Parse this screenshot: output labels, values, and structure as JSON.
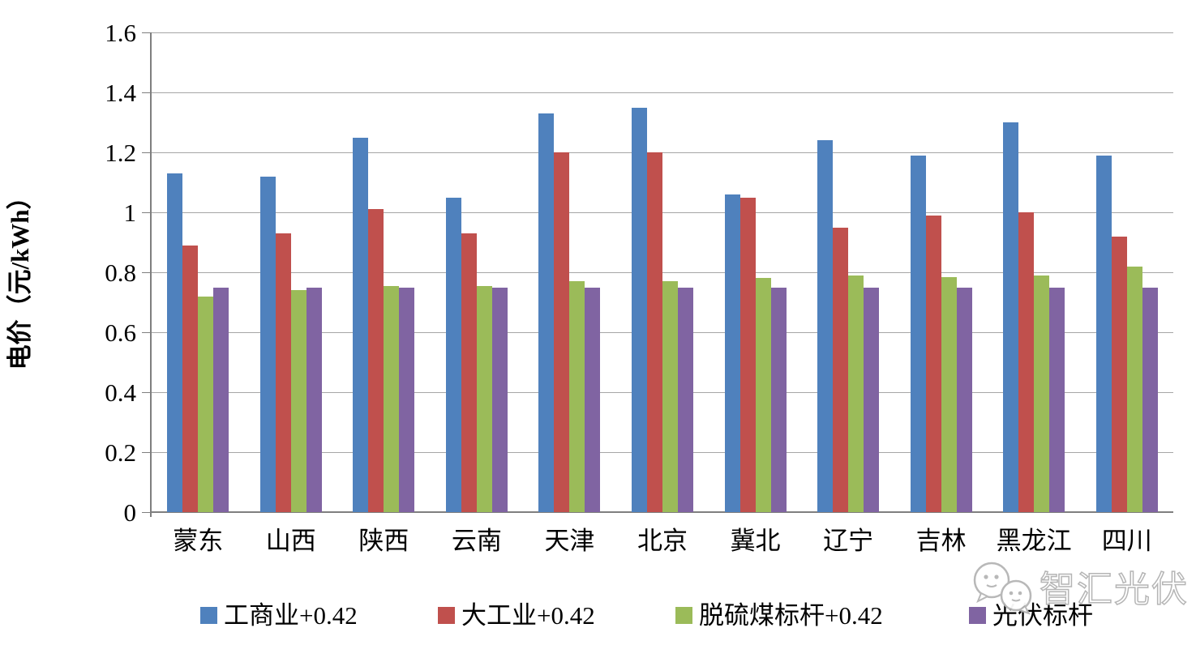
{
  "chart_data": {
    "type": "bar",
    "title": "",
    "xlabel": "",
    "ylabel": "电价（元/kWh）",
    "ylim": [
      0,
      1.6
    ],
    "ytick_step": 0.2,
    "ytick_labels": [
      "0",
      "0.2",
      "0.4",
      "0.6",
      "0.8",
      "1",
      "1.2",
      "1.4",
      "1.6"
    ],
    "grid": true,
    "legend_position": "bottom",
    "categories": [
      "蒙东",
      "山西",
      "陕西",
      "云南",
      "天津",
      "北京",
      "冀北",
      "辽宁",
      "吉林",
      "黑龙江",
      "四川"
    ],
    "series": [
      {
        "name": "工商业+0.42",
        "color": "#4F81BD",
        "values": [
          1.13,
          1.12,
          1.25,
          1.05,
          1.33,
          1.35,
          1.06,
          1.24,
          1.19,
          1.3,
          1.19
        ]
      },
      {
        "name": "大工业+0.42",
        "color": "#C0504D",
        "values": [
          0.89,
          0.93,
          1.01,
          0.93,
          1.2,
          1.2,
          1.05,
          0.95,
          0.99,
          1.0,
          0.92
        ]
      },
      {
        "name": "脱硫煤标杆+0.42",
        "color": "#9BBB59",
        "values": [
          0.72,
          0.74,
          0.755,
          0.755,
          0.77,
          0.77,
          0.78,
          0.79,
          0.785,
          0.79,
          0.82
        ]
      },
      {
        "name": "光伏标杆",
        "color": "#8064A2",
        "values": [
          0.75,
          0.75,
          0.75,
          0.75,
          0.75,
          0.75,
          0.75,
          0.75,
          0.75,
          0.75,
          0.75
        ]
      }
    ]
  },
  "watermark": {
    "text": "智汇光伏",
    "icon": "wechat-bubbles-icon"
  },
  "colors": {
    "gridline": "#A6A6A6",
    "axis": "#7F7F7F",
    "text": "#000000",
    "watermark_stroke": "#B5B5B5"
  }
}
